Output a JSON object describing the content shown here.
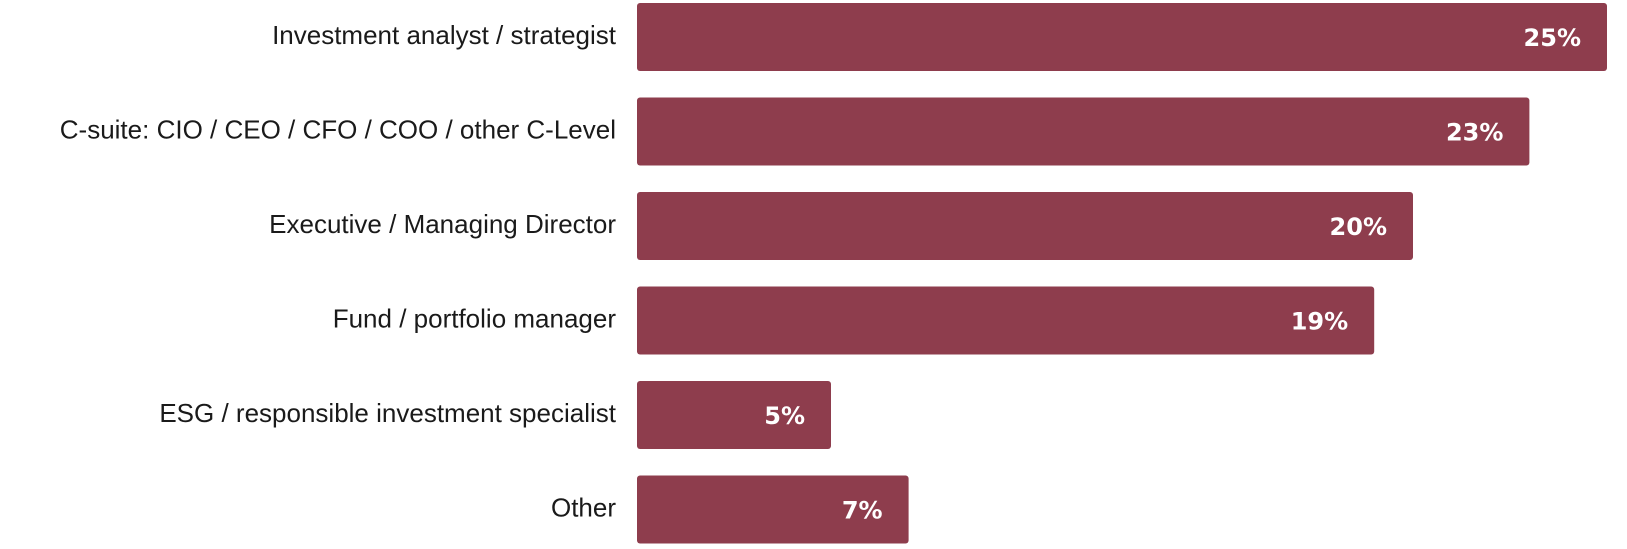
{
  "chart_data": {
    "type": "bar",
    "orientation": "horizontal",
    "categories": [
      "Investment analyst / strategist",
      "C-suite: CIO / CEO / CFO / COO / other C-Level",
      "Executive / Managing Director",
      "Fund / portfolio manager",
      "ESG / responsible investment specialist",
      "Other"
    ],
    "values": [
      25,
      23,
      20,
      19,
      5,
      7
    ],
    "value_labels": [
      "25%",
      "23%",
      "20%",
      "19%",
      "5%",
      "7%"
    ],
    "unit": "%",
    "bar_color": "#8E3D4D",
    "grid": false,
    "legend": false
  }
}
